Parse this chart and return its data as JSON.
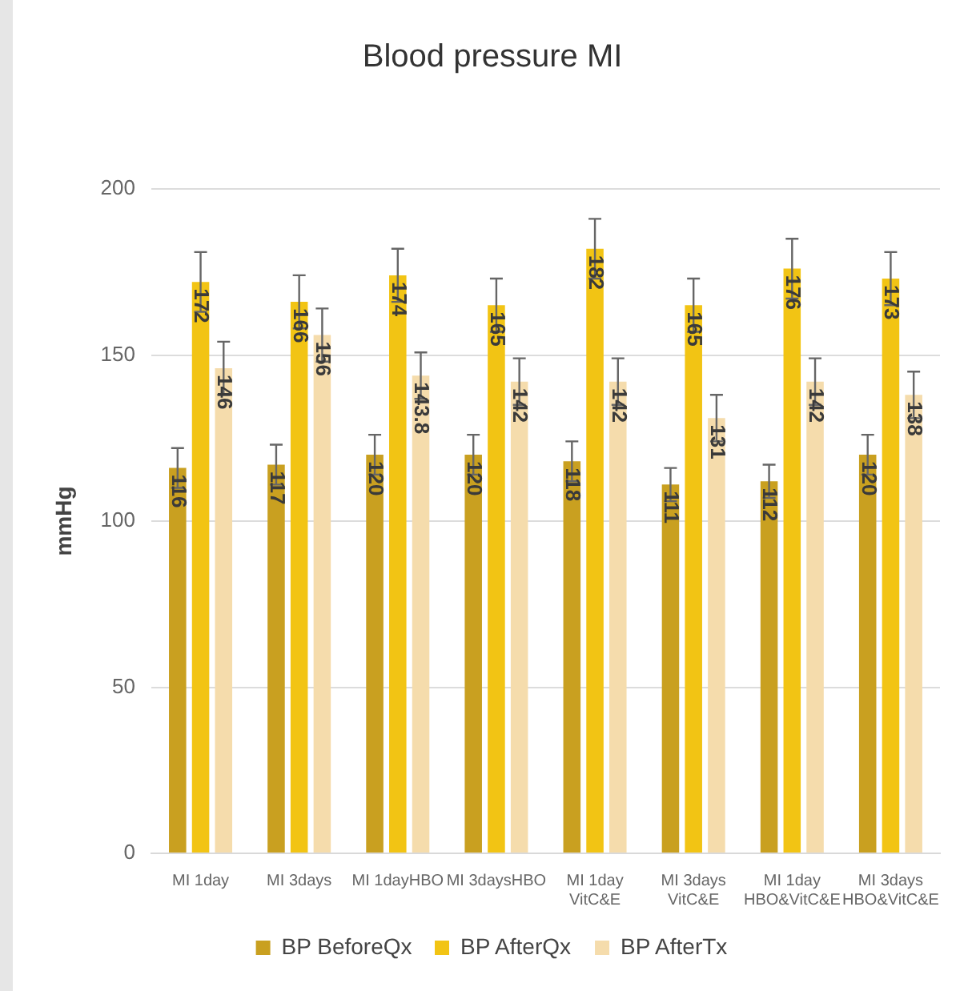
{
  "chart_data": {
    "type": "bar",
    "title": "Blood pressure MI",
    "ylabel": "mmHg",
    "categories": [
      "MI 1day",
      "MI 3days",
      "MI 1dayHBO",
      "MI 3daysHBO",
      "MI 1day VitC&E",
      "MI 3days VitC&E",
      "MI 1day HBO&VitC&E",
      "MI 3days HBO&VitC&E"
    ],
    "series": [
      {
        "name": "BP BeforeQx",
        "color": "#c9a020",
        "values": [
          116,
          117,
          120,
          120,
          118,
          111,
          112,
          120
        ],
        "errors": [
          6,
          6,
          6,
          6,
          6,
          5,
          5,
          6
        ]
      },
      {
        "name": "BP AfterQx",
        "color": "#f2c414",
        "values": [
          172,
          166,
          174,
          165,
          182,
          165,
          176,
          173
        ],
        "errors": [
          9,
          8,
          8,
          8,
          9,
          8,
          9,
          8
        ]
      },
      {
        "name": "BP AfterTx",
        "color": "#f5dcac",
        "values": [
          146,
          156,
          143.8,
          142,
          142,
          131,
          142,
          138
        ],
        "errors": [
          8,
          8,
          7,
          7,
          7,
          7,
          7,
          7
        ]
      }
    ],
    "ylim": [
      0,
      200
    ],
    "yticks": [
      0,
      50,
      100,
      150,
      200
    ],
    "grid": "y",
    "legend": "bottom",
    "data_labels": true
  }
}
